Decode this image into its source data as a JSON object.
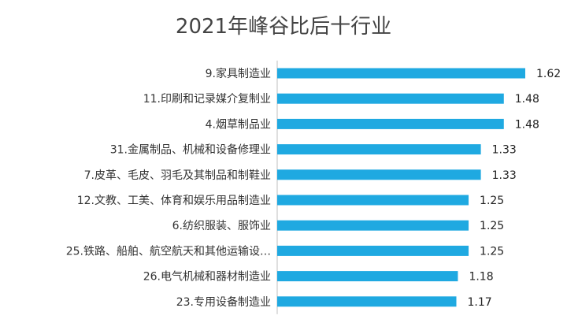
{
  "chart_data": {
    "type": "bar",
    "orientation": "horizontal",
    "title": "2021年峰谷比后十行业",
    "categories": [
      "9.家具制造业",
      "11.印刷和记录媒介复制业",
      "4.烟草制品业",
      "31.金属制品、机械和设备修理业",
      "7.皮革、毛皮、羽毛及其制品和制鞋业",
      "12.文教、工美、体育和娱乐用品制造业",
      "6.纺织服装、服饰业",
      "25.铁路、船舶、航空航天和其他运输设…",
      "26.电气机械和器材制造业",
      "23.专用设备制造业"
    ],
    "values": [
      1.62,
      1.48,
      1.48,
      1.33,
      1.33,
      1.25,
      1.25,
      1.25,
      1.18,
      1.17
    ],
    "value_labels": [
      "1.62",
      "1.48",
      "1.48",
      "1.33",
      "1.33",
      "1.25",
      "1.25",
      "1.25",
      "1.18",
      "1.17"
    ],
    "xlim": [
      0,
      1.62
    ],
    "grid": false,
    "legend": "none",
    "bar_color": "#1fa9e1",
    "axis_color": "#bfbfbf"
  }
}
